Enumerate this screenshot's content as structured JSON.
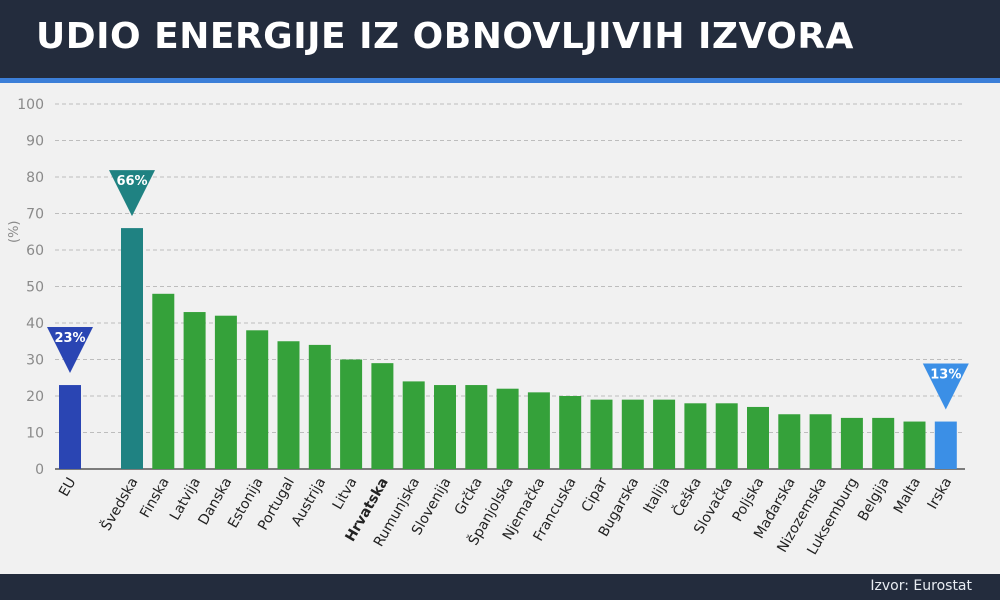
{
  "header": {
    "title": "UDIO ENERGIJE IZ OBNOVLJIVIH IZVORA"
  },
  "footer": {
    "source": "Izvor: Eurostat"
  },
  "colors": {
    "eu": "#2a45b3",
    "sweden": "#1f8282",
    "country": "#35a13a",
    "ireland": "#3b8fe6",
    "header_bg": "#232c3d",
    "accent": "#3c7fd8",
    "grid": "#bdbdbd",
    "axis_text": "#8a8a8a"
  },
  "chart_data": {
    "type": "bar",
    "title": "UDIO ENERGIJE IZ OBNOVLJIVIH IZVORA",
    "xlabel": "",
    "ylabel": "(%)",
    "ylim": [
      0,
      100
    ],
    "yticks": [
      0,
      10,
      20,
      30,
      40,
      50,
      60,
      70,
      80,
      90,
      100
    ],
    "grid": true,
    "categories": [
      "EU",
      "Švedska",
      "Finska",
      "Latvija",
      "Danska",
      "Estonija",
      "Portugal",
      "Austrija",
      "Litva",
      "Hrvatska",
      "Rumunjska",
      "Slovenija",
      "Grčka",
      "Španjolska",
      "Njemačka",
      "Francuska",
      "Cipar",
      "Bugarska",
      "Italija",
      "Češka",
      "Slovačka",
      "Poljska",
      "Mađarska",
      "Nizozemska",
      "Luksemburg",
      "Belgija",
      "Malta",
      "Irska"
    ],
    "values": [
      23,
      66,
      48,
      43,
      42,
      38,
      35,
      34,
      30,
      29,
      24,
      23,
      23,
      22,
      21,
      20,
      19,
      19,
      19,
      18,
      18,
      17,
      15,
      15,
      14,
      14,
      13,
      13
    ],
    "bold_category": "Hrvatska",
    "annotations": [
      {
        "category": "EU",
        "text": "23%",
        "color": "eu"
      },
      {
        "category": "Švedska",
        "text": "66%",
        "color": "sweden"
      },
      {
        "category": "Irska",
        "text": "13%",
        "color": "ireland"
      }
    ]
  }
}
